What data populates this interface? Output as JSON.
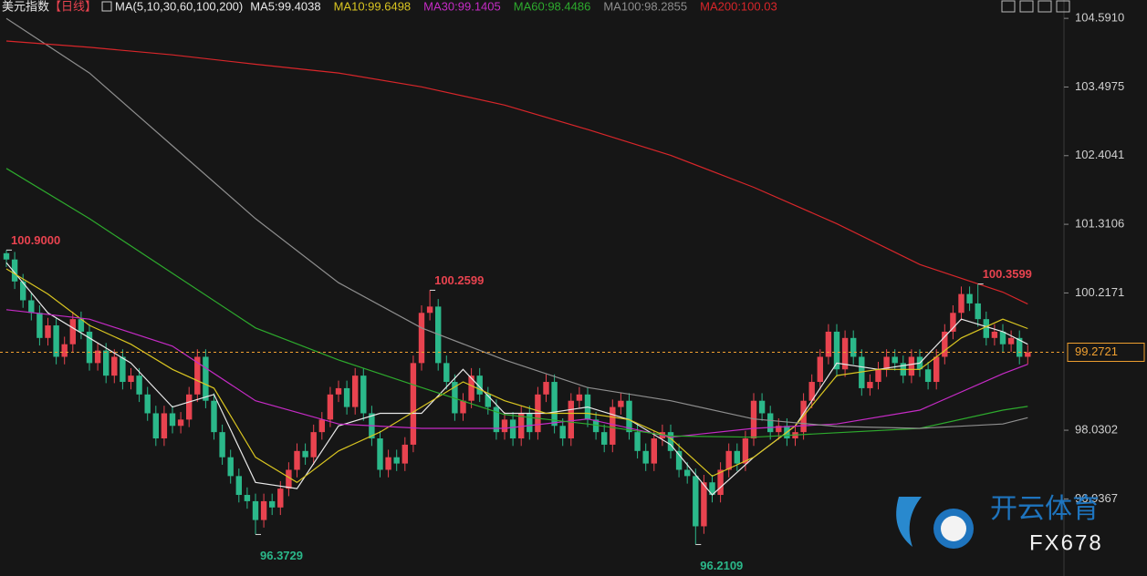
{
  "chart_data": {
    "type": "candlestick",
    "title": "美元指数",
    "period": "【日线】",
    "indicator": "MA(5,10,30,60,100,200)",
    "up_color": "#e8434f",
    "down_color": "#2bb88a",
    "ylim": [
      95.81,
      104.68
    ],
    "yticks": [
      {
        "value": 104.591,
        "label": "104.5910"
      },
      {
        "value": 103.4975,
        "label": "103.4975"
      },
      {
        "value": 102.4041,
        "label": "102.4041"
      },
      {
        "value": 101.3106,
        "label": "101.3106"
      },
      {
        "value": 100.2171,
        "label": "100.2171"
      },
      {
        "value": 98.0302,
        "label": "98.0302"
      },
      {
        "value": 96.9367,
        "label": "96.9367"
      }
    ],
    "open": [
      100.85,
      100.75,
      100.4,
      100.1,
      99.9,
      99.5,
      99.7,
      99.2,
      99.4,
      99.8,
      99.6,
      99.1,
      99.3,
      98.9,
      99.2,
      98.8,
      98.9,
      98.6,
      98.3,
      97.9,
      98.3,
      98.1,
      98.2,
      98.6,
      99.2,
      98.5,
      98.0,
      97.6,
      97.3,
      97.0,
      96.9,
      96.6,
      96.9,
      96.8,
      97.1,
      97.4,
      97.7,
      97.6,
      98.0,
      98.2,
      98.6,
      98.7,
      98.4,
      98.9,
      98.3,
      97.9,
      97.4,
      97.6,
      97.5,
      97.8,
      99.1,
      99.9,
      100.0,
      99.1,
      98.8,
      98.3,
      98.5,
      98.9,
      98.6,
      98.4,
      98.0,
      98.2,
      97.9,
      98.3,
      98.0,
      98.6,
      98.8,
      98.1,
      97.9,
      98.5,
      98.6,
      98.2,
      98.0,
      97.8,
      98.4,
      98.5,
      98.0,
      97.7,
      97.5,
      97.9,
      98.0,
      97.7,
      97.4,
      97.3,
      96.5,
      97.2,
      97.0,
      97.4,
      97.7,
      97.5,
      97.9,
      98.5,
      98.3,
      98.0,
      98.1,
      97.9,
      98.0,
      98.5,
      98.8,
      99.2,
      99.6,
      99.0,
      99.5,
      99.2,
      98.7,
      98.8,
      99.0,
      99.2,
      99.1,
      98.9,
      99.2,
      99.0,
      98.8,
      99.2,
      99.6,
      99.9,
      100.2,
      100.05,
      99.8,
      99.5,
      99.6,
      99.4,
      99.5,
      99.2
    ],
    "high": [
      100.9,
      100.87,
      100.52,
      100.22,
      100.02,
      99.82,
      99.82,
      99.52,
      99.92,
      99.92,
      99.72,
      99.42,
      99.42,
      99.32,
      99.32,
      99.02,
      99.02,
      98.72,
      98.42,
      98.42,
      98.42,
      98.32,
      98.72,
      99.32,
      99.32,
      98.62,
      98.12,
      97.72,
      97.42,
      97.12,
      97.02,
      97.02,
      97.02,
      97.22,
      97.52,
      97.82,
      97.82,
      98.12,
      98.32,
      98.72,
      98.82,
      98.82,
      99.02,
      99.02,
      98.42,
      98.02,
      97.72,
      97.72,
      97.92,
      99.22,
      100.02,
      100.26,
      100.12,
      99.22,
      98.92,
      98.62,
      99.02,
      99.02,
      98.72,
      98.52,
      98.32,
      98.32,
      98.42,
      98.42,
      98.72,
      98.92,
      98.92,
      98.22,
      98.62,
      98.72,
      98.72,
      98.32,
      98.12,
      98.52,
      98.62,
      98.62,
      98.12,
      97.82,
      98.02,
      98.12,
      98.12,
      97.82,
      97.52,
      97.42,
      97.32,
      97.32,
      97.52,
      97.82,
      97.82,
      98.02,
      98.62,
      98.62,
      98.42,
      98.22,
      98.22,
      98.12,
      98.62,
      98.92,
      99.32,
      99.72,
      99.72,
      99.62,
      99.62,
      99.32,
      98.92,
      99.12,
      99.32,
      99.32,
      99.22,
      99.32,
      99.32,
      99.12,
      99.32,
      99.72,
      100.02,
      100.32,
      100.32,
      100.36,
      99.92,
      99.72,
      99.72,
      99.62,
      99.62,
      99.39
    ],
    "low": [
      100.63,
      100.28,
      99.98,
      99.78,
      99.38,
      99.38,
      99.08,
      99.08,
      99.28,
      99.48,
      98.98,
      98.98,
      98.78,
      98.78,
      98.68,
      98.68,
      98.48,
      98.18,
      97.78,
      97.78,
      97.98,
      97.98,
      98.08,
      98.48,
      98.38,
      97.88,
      97.48,
      97.18,
      96.88,
      96.78,
      96.37,
      96.48,
      96.68,
      96.68,
      96.98,
      97.28,
      97.48,
      97.48,
      97.88,
      98.08,
      98.48,
      98.28,
      98.28,
      98.18,
      97.78,
      97.28,
      97.28,
      97.38,
      97.38,
      97.68,
      98.98,
      99.78,
      98.98,
      98.68,
      98.18,
      98.18,
      98.38,
      98.48,
      98.28,
      97.88,
      97.88,
      97.78,
      97.78,
      97.88,
      97.88,
      98.48,
      97.98,
      97.78,
      97.78,
      98.38,
      98.08,
      97.88,
      97.68,
      97.68,
      98.28,
      97.88,
      97.58,
      97.38,
      97.38,
      97.78,
      97.58,
      97.28,
      97.18,
      96.21,
      96.38,
      96.88,
      96.88,
      97.28,
      97.38,
      97.38,
      97.78,
      98.18,
      97.88,
      97.88,
      97.78,
      97.78,
      97.88,
      98.38,
      98.68,
      99.08,
      98.88,
      98.88,
      99.08,
      98.58,
      98.58,
      98.68,
      98.88,
      98.98,
      98.78,
      98.78,
      98.88,
      98.68,
      98.68,
      99.08,
      99.48,
      99.78,
      99.93,
      99.68,
      99.38,
      99.38,
      99.28,
      99.28,
      99.08,
      99.08
    ],
    "close": [
      100.75,
      100.4,
      100.1,
      99.9,
      99.5,
      99.7,
      99.2,
      99.4,
      99.8,
      99.6,
      99.1,
      99.3,
      98.9,
      99.2,
      98.8,
      98.9,
      98.6,
      98.3,
      97.9,
      98.3,
      98.1,
      98.2,
      98.6,
      99.2,
      98.5,
      98.0,
      97.6,
      97.3,
      97.0,
      96.9,
      96.6,
      96.9,
      96.8,
      97.1,
      97.4,
      97.7,
      97.6,
      98.0,
      98.2,
      98.6,
      98.7,
      98.4,
      98.9,
      98.3,
      97.9,
      97.4,
      97.6,
      97.5,
      97.8,
      99.1,
      99.9,
      100.0,
      99.1,
      98.8,
      98.3,
      98.5,
      98.9,
      98.6,
      98.4,
      98.0,
      98.2,
      97.9,
      98.3,
      98.0,
      98.6,
      98.8,
      98.1,
      97.9,
      98.5,
      98.6,
      98.2,
      98.0,
      97.8,
      98.4,
      98.5,
      98.0,
      97.7,
      97.5,
      97.9,
      98.0,
      97.7,
      97.4,
      97.3,
      96.5,
      97.2,
      97.0,
      97.4,
      97.7,
      97.5,
      97.9,
      98.5,
      98.3,
      98.0,
      98.1,
      97.9,
      98.0,
      98.5,
      98.8,
      99.2,
      99.6,
      99.0,
      99.5,
      99.2,
      98.7,
      98.8,
      99.0,
      99.2,
      99.1,
      98.9,
      99.2,
      99.0,
      98.8,
      99.2,
      99.6,
      99.9,
      100.2,
      100.05,
      99.8,
      99.5,
      99.6,
      99.4,
      99.5,
      99.2,
      99.27
    ],
    "series": [
      {
        "name": "MA5:99.4038",
        "color": "#e8e8e8",
        "x": [
          0,
          5,
          10,
          15,
          20,
          25,
          30,
          35,
          40,
          45,
          50,
          55,
          60,
          65,
          70,
          75,
          80,
          85,
          90,
          95,
          100,
          105,
          110,
          115,
          120,
          123
        ],
        "values": [
          100.7,
          99.9,
          99.5,
          99.1,
          98.4,
          98.6,
          97.2,
          97.1,
          98.1,
          98.3,
          98.3,
          99.0,
          98.3,
          98.3,
          98.4,
          98.2,
          97.8,
          97.0,
          97.6,
          98.1,
          99.1,
          99.0,
          99.1,
          99.8,
          99.6,
          99.4
        ]
      },
      {
        "name": "MA10:99.6498",
        "color": "#d9c521",
        "x": [
          0,
          5,
          10,
          15,
          20,
          25,
          30,
          35,
          40,
          45,
          50,
          55,
          60,
          65,
          70,
          75,
          80,
          85,
          90,
          95,
          100,
          105,
          110,
          115,
          120,
          123
        ],
        "values": [
          100.6,
          100.2,
          99.7,
          99.4,
          99.0,
          98.7,
          97.6,
          97.2,
          97.7,
          98.0,
          98.4,
          98.8,
          98.5,
          98.3,
          98.3,
          98.2,
          97.9,
          97.3,
          97.6,
          98.1,
          98.9,
          99.0,
          99.0,
          99.5,
          99.8,
          99.65
        ]
      },
      {
        "name": "MA30:99.1405",
        "color": "#c52bc5",
        "x": [
          0,
          10,
          20,
          30,
          40,
          50,
          60,
          70,
          80,
          90,
          100,
          110,
          120,
          123
        ],
        "values": [
          99.95,
          99.8,
          99.37,
          98.5,
          98.13,
          98.06,
          98.06,
          98.21,
          97.92,
          98.06,
          98.13,
          98.35,
          98.93,
          99.08
        ]
      },
      {
        "name": "MA60:98.4486",
        "color": "#2daa2d",
        "x": [
          0,
          10,
          20,
          30,
          40,
          50,
          60,
          70,
          80,
          90,
          100,
          110,
          120,
          123
        ],
        "values": [
          102.2,
          101.4,
          100.53,
          99.66,
          99.15,
          98.71,
          98.28,
          98.13,
          97.94,
          97.92,
          97.99,
          98.06,
          98.35,
          98.41
        ]
      },
      {
        "name": "MA100:98.2855",
        "color": "#8e8e8e",
        "x": [
          0,
          10,
          20,
          30,
          40,
          50,
          60,
          70,
          80,
          90,
          100,
          110,
          120,
          123
        ],
        "values": [
          104.59,
          103.72,
          102.56,
          101.4,
          100.38,
          99.66,
          99.15,
          98.71,
          98.5,
          98.21,
          98.09,
          98.06,
          98.13,
          98.23
        ]
      },
      {
        "name": "MA200:100.03",
        "color": "#d8262a",
        "x": [
          0,
          10,
          20,
          30,
          40,
          50,
          60,
          70,
          80,
          90,
          100,
          110,
          120,
          123
        ],
        "values": [
          104.23,
          104.13,
          104.01,
          103.86,
          103.72,
          103.5,
          103.21,
          102.82,
          102.41,
          101.9,
          101.32,
          100.67,
          100.23,
          100.04
        ]
      }
    ],
    "annotations": [
      {
        "label": "100.9000",
        "value": 100.9,
        "index": 0,
        "color": "#e8434f"
      },
      {
        "label": "100.2599",
        "value": 100.26,
        "index": 51,
        "color": "#e8434f"
      },
      {
        "label": "100.3599",
        "value": 100.36,
        "index": 117,
        "color": "#e8434f"
      },
      {
        "label": "96.3729",
        "value": 96.37,
        "index": 30,
        "color": "#2bb88a"
      },
      {
        "label": "96.2109",
        "value": 96.21,
        "index": 83,
        "color": "#2bb88a"
      }
    ],
    "last_price": {
      "value": 99.2721,
      "label": "99.2721",
      "color": "#f0a030"
    }
  },
  "watermark": {
    "brand": "开云体育",
    "code": "FX678"
  }
}
